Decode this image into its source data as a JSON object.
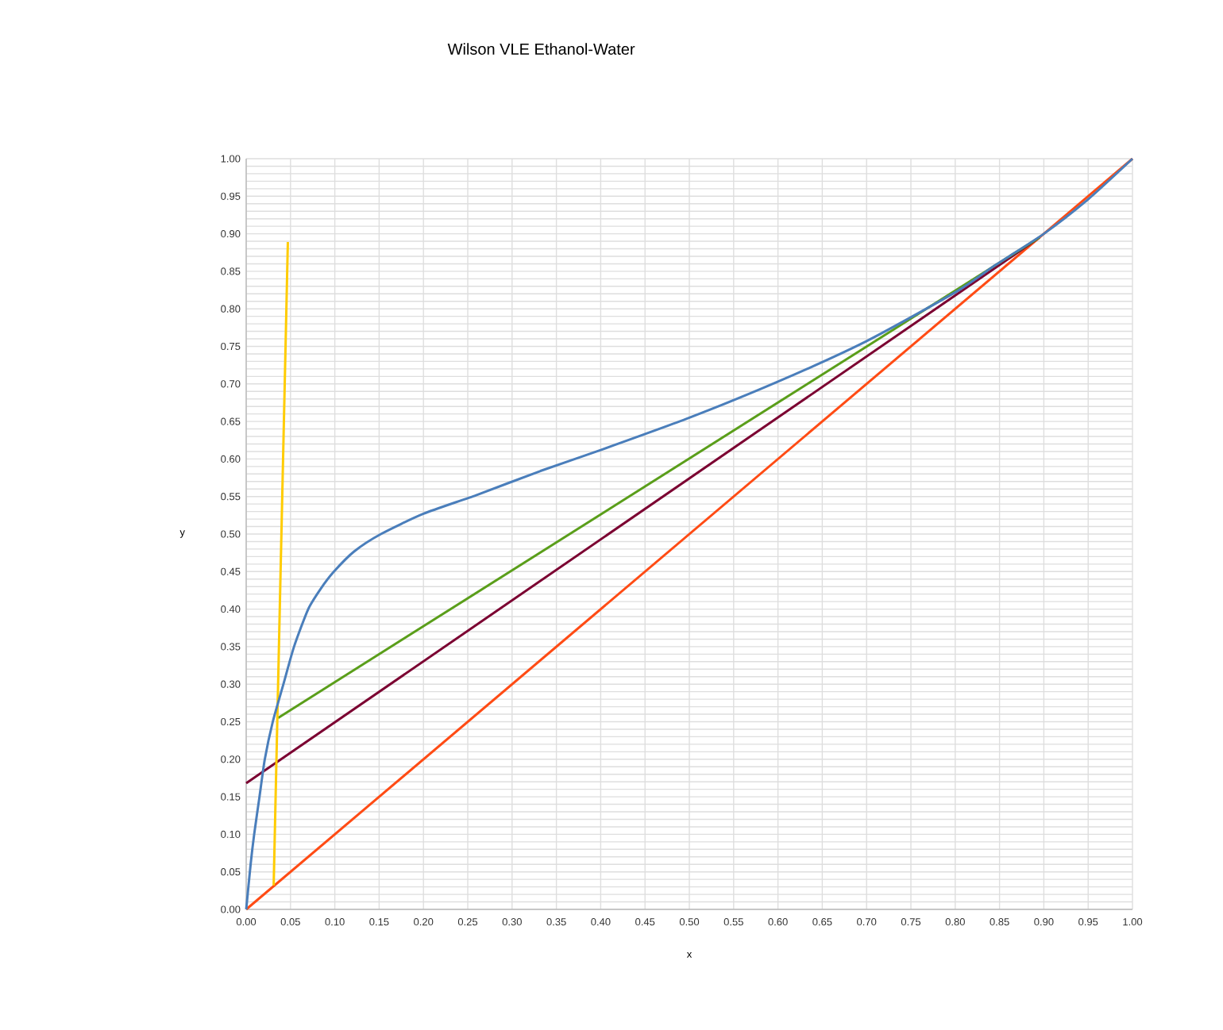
{
  "chart_data": {
    "type": "line",
    "title": "Wilson VLE Ethanol-Water",
    "xlabel": "x",
    "ylabel": "y",
    "xlim": [
      0,
      1
    ],
    "ylim": [
      0,
      1
    ],
    "xticks": [
      {
        "value": 0,
        "label": "0.00"
      },
      {
        "value": 0.05,
        "label": "0.05"
      },
      {
        "value": 0.1,
        "label": "0.10"
      },
      {
        "value": 0.15,
        "label": "0.15"
      },
      {
        "value": 0.2,
        "label": "0.20"
      },
      {
        "value": 0.25,
        "label": "0.25"
      },
      {
        "value": 0.3,
        "label": "0.30"
      },
      {
        "value": 0.35,
        "label": "0.35"
      },
      {
        "value": 0.4,
        "label": "0.40"
      },
      {
        "value": 0.45,
        "label": "0.45"
      },
      {
        "value": 0.5,
        "label": "0.50"
      },
      {
        "value": 0.55,
        "label": "0.55"
      },
      {
        "value": 0.6,
        "label": "0.60"
      },
      {
        "value": 0.65,
        "label": "0.65"
      },
      {
        "value": 0.7,
        "label": "0.70"
      },
      {
        "value": 0.75,
        "label": "0.75"
      },
      {
        "value": 0.8,
        "label": "0.80"
      },
      {
        "value": 0.85,
        "label": "0.85"
      },
      {
        "value": 0.9,
        "label": "0.90"
      },
      {
        "value": 0.95,
        "label": "0.95"
      },
      {
        "value": 1,
        "label": "1.00"
      }
    ],
    "yticks": [
      {
        "value": 0,
        "label": "0.00"
      },
      {
        "value": 0.05,
        "label": "0.05"
      },
      {
        "value": 0.1,
        "label": "0.10"
      },
      {
        "value": 0.15,
        "label": "0.15"
      },
      {
        "value": 0.2,
        "label": "0.20"
      },
      {
        "value": 0.25,
        "label": "0.25"
      },
      {
        "value": 0.3,
        "label": "0.30"
      },
      {
        "value": 0.35,
        "label": "0.35"
      },
      {
        "value": 0.4,
        "label": "0.40"
      },
      {
        "value": 0.45,
        "label": "0.45"
      },
      {
        "value": 0.5,
        "label": "0.50"
      },
      {
        "value": 0.55,
        "label": "0.55"
      },
      {
        "value": 0.6,
        "label": "0.60"
      },
      {
        "value": 0.65,
        "label": "0.65"
      },
      {
        "value": 0.7,
        "label": "0.70"
      },
      {
        "value": 0.75,
        "label": "0.75"
      },
      {
        "value": 0.8,
        "label": "0.80"
      },
      {
        "value": 0.85,
        "label": "0.85"
      },
      {
        "value": 0.9,
        "label": "0.90"
      },
      {
        "value": 0.95,
        "label": "0.95"
      },
      {
        "value": 1,
        "label": "1.00"
      }
    ],
    "grid": true,
    "marker": "none",
    "line_style": "solid",
    "series": [
      {
        "color": "#ff4b14",
        "x": [
          0,
          1
        ],
        "values": [
          0,
          1
        ]
      },
      {
        "color": "#7b0031",
        "x": [
          0,
          0.895
        ],
        "values": [
          0.168,
          0.895
        ]
      },
      {
        "color": "#5a9e1a",
        "x": [
          0.036,
          0.895
        ],
        "values": [
          0.255,
          0.895
        ]
      },
      {
        "color": "#ffcc00",
        "x": [
          0.031,
          0.047
        ],
        "values": [
          0.032,
          0.889
        ]
      },
      {
        "color": "#4a7ebb",
        "x": [
          0,
          0.005,
          0.009,
          0.015,
          0.021,
          0.03,
          0.042,
          0.054,
          0.07,
          0.084,
          0.099,
          0.122,
          0.152,
          0.2,
          0.26,
          0.332,
          0.4,
          0.5,
          0.6,
          0.7,
          0.8,
          0.845,
          0.9,
          0.95,
          1
        ],
        "values": [
          0,
          0.06,
          0.1,
          0.15,
          0.2,
          0.25,
          0.3,
          0.35,
          0.4,
          0.427,
          0.45,
          0.477,
          0.5,
          0.527,
          0.552,
          0.584,
          0.612,
          0.655,
          0.703,
          0.757,
          0.822,
          0.858,
          0.9,
          0.946,
          1
        ]
      }
    ]
  }
}
